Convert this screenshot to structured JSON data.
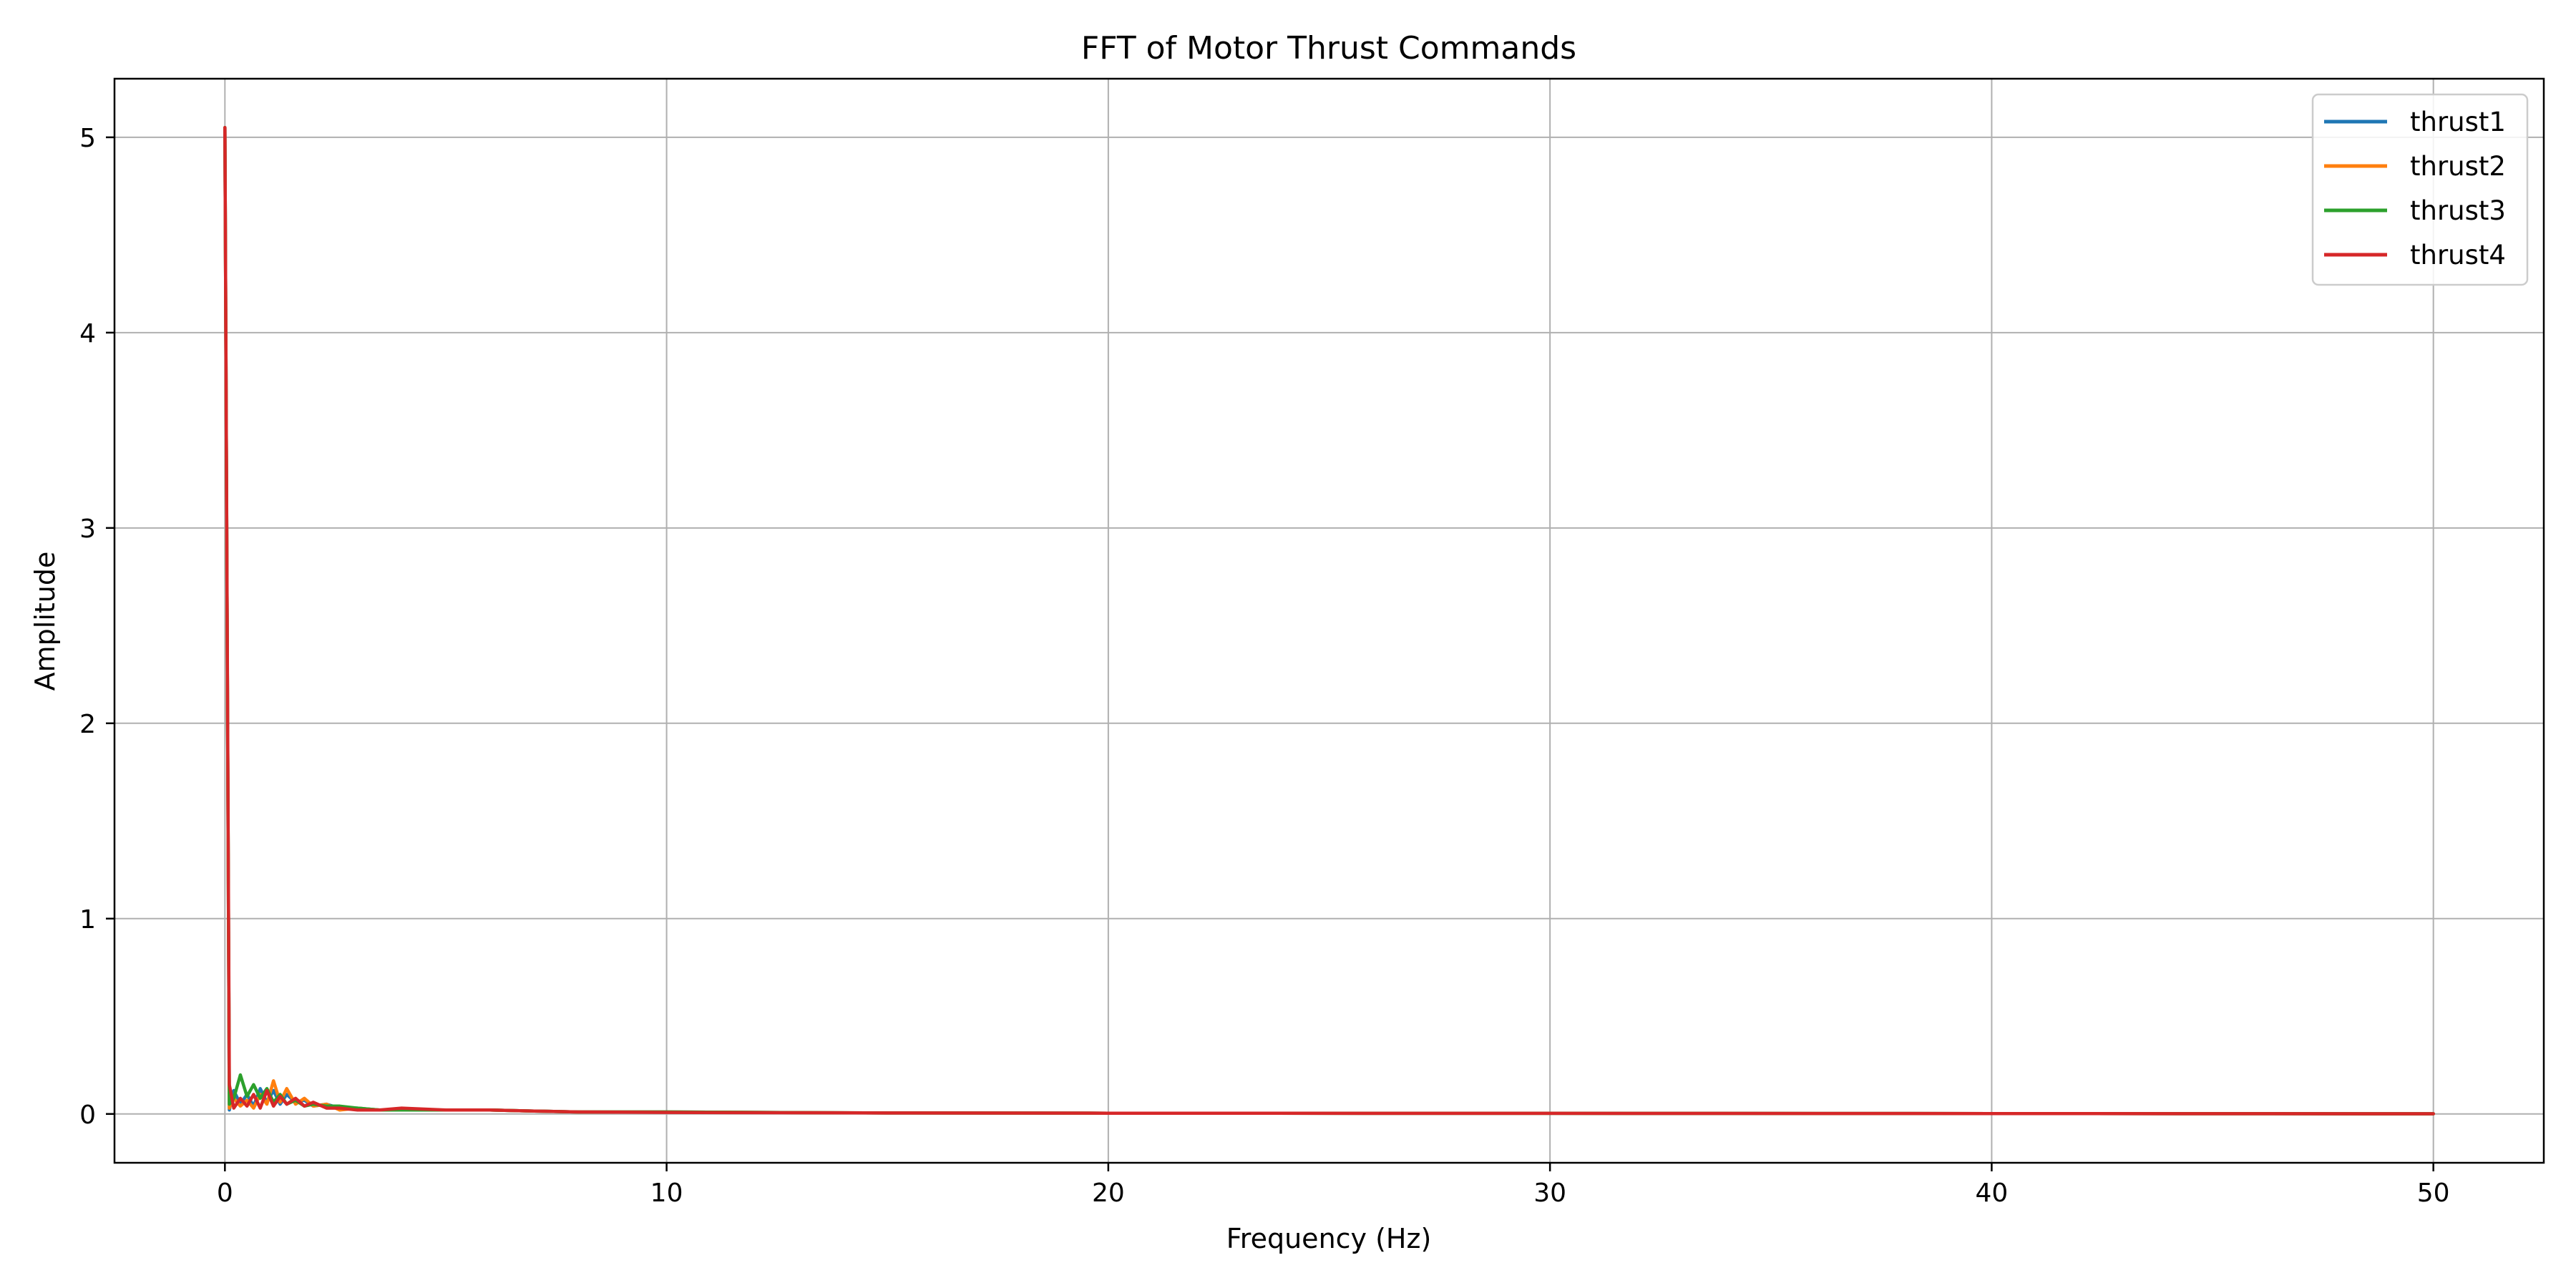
{
  "chart_data": {
    "type": "line",
    "title": "FFT of Motor Thrust Commands",
    "xlabel": "Frequency (Hz)",
    "ylabel": "Amplitude",
    "xlim": [
      -2.5,
      52.5
    ],
    "ylim": [
      -0.25,
      5.3
    ],
    "xticks": [
      0,
      10,
      20,
      30,
      40,
      50
    ],
    "yticks": [
      0,
      1,
      2,
      3,
      4,
      5
    ],
    "grid": true,
    "legend_position": "top-right",
    "series": [
      {
        "name": "thrust1",
        "color": "#1f77b4",
        "x": [
          0,
          0.1,
          0.2,
          0.35,
          0.5,
          0.65,
          0.8,
          0.95,
          1.1,
          1.25,
          1.4,
          1.6,
          1.8,
          2.0,
          2.3,
          2.6,
          3.0,
          3.5,
          4.0,
          5.0,
          6.0,
          7.0,
          8.0,
          10.0,
          15.0,
          20.0,
          30.0,
          40.0,
          50.0
        ],
        "y": [
          5.05,
          0.02,
          0.12,
          0.05,
          0.1,
          0.04,
          0.13,
          0.06,
          0.12,
          0.05,
          0.1,
          0.06,
          0.07,
          0.04,
          0.05,
          0.03,
          0.03,
          0.02,
          0.02,
          0.02,
          0.02,
          0.015,
          0.01,
          0.01,
          0.005,
          0.004,
          0.003,
          0.002,
          0.001
        ]
      },
      {
        "name": "thrust2",
        "color": "#ff7f0e",
        "x": [
          0,
          0.1,
          0.2,
          0.35,
          0.5,
          0.65,
          0.8,
          0.95,
          1.1,
          1.25,
          1.4,
          1.6,
          1.8,
          2.0,
          2.3,
          2.6,
          3.0,
          3.5,
          4.0,
          5.0,
          6.0,
          7.0,
          8.0,
          10.0,
          15.0,
          20.0,
          30.0,
          40.0,
          50.0
        ],
        "y": [
          5.05,
          0.03,
          0.08,
          0.04,
          0.07,
          0.03,
          0.1,
          0.05,
          0.17,
          0.06,
          0.13,
          0.05,
          0.08,
          0.04,
          0.05,
          0.02,
          0.03,
          0.02,
          0.02,
          0.02,
          0.02,
          0.015,
          0.01,
          0.01,
          0.005,
          0.004,
          0.003,
          0.002,
          0.001
        ]
      },
      {
        "name": "thrust3",
        "color": "#2ca02c",
        "x": [
          0,
          0.1,
          0.2,
          0.35,
          0.5,
          0.65,
          0.8,
          0.95,
          1.1,
          1.25,
          1.4,
          1.6,
          1.8,
          2.0,
          2.3,
          2.6,
          3.0,
          3.5,
          4.0,
          5.0,
          6.0,
          7.0,
          8.0,
          10.0,
          15.0,
          20.0,
          30.0,
          40.0,
          50.0
        ],
        "y": [
          5.05,
          0.05,
          0.08,
          0.2,
          0.09,
          0.15,
          0.08,
          0.13,
          0.06,
          0.1,
          0.05,
          0.07,
          0.04,
          0.05,
          0.04,
          0.04,
          0.03,
          0.02,
          0.02,
          0.02,
          0.02,
          0.015,
          0.01,
          0.01,
          0.005,
          0.004,
          0.003,
          0.002,
          0.001
        ]
      },
      {
        "name": "thrust4",
        "color": "#d62728",
        "x": [
          0,
          0.1,
          0.2,
          0.35,
          0.5,
          0.65,
          0.8,
          0.95,
          1.1,
          1.25,
          1.4,
          1.6,
          1.8,
          2.0,
          2.3,
          2.6,
          3.0,
          3.5,
          4.0,
          5.0,
          6.0,
          7.0,
          8.0,
          10.0,
          15.0,
          20.0,
          30.0,
          40.0,
          50.0
        ],
        "y": [
          5.05,
          0.15,
          0.03,
          0.08,
          0.04,
          0.1,
          0.03,
          0.12,
          0.04,
          0.09,
          0.05,
          0.08,
          0.04,
          0.06,
          0.03,
          0.03,
          0.02,
          0.02,
          0.03,
          0.02,
          0.02,
          0.015,
          0.01,
          0.008,
          0.005,
          0.004,
          0.003,
          0.002,
          0.001
        ]
      }
    ]
  }
}
